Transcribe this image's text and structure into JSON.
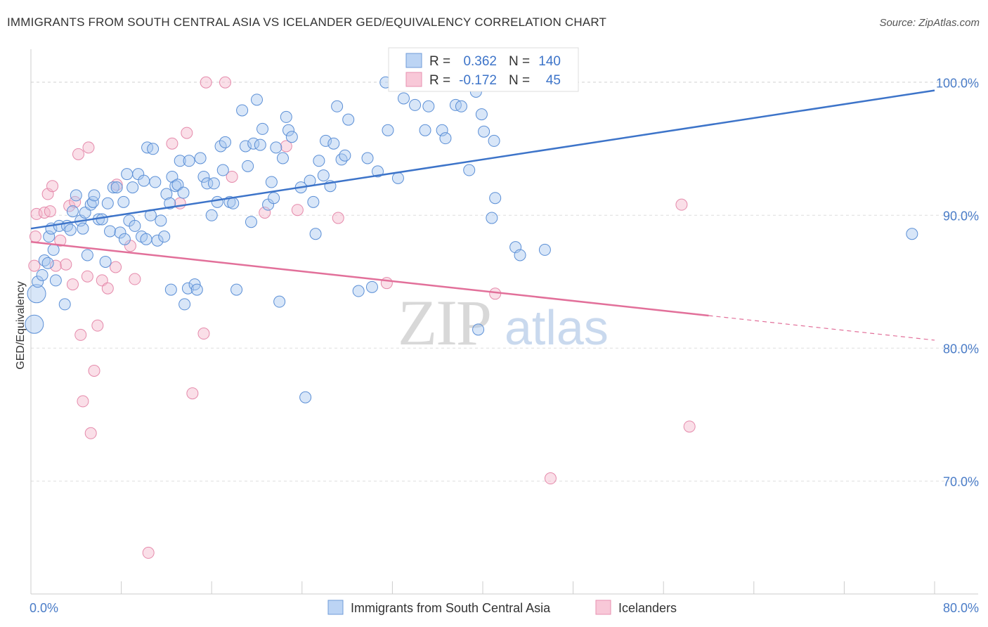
{
  "title": "IMMIGRANTS FROM SOUTH CENTRAL ASIA VS ICELANDER GED/EQUIVALENCY CORRELATION CHART",
  "source": "Source: ZipAtlas.com",
  "watermark": {
    "zip": "ZIP",
    "atlas": "atlas"
  },
  "chart_data": {
    "type": "scatter",
    "xlabel": "",
    "ylabel": "GED/Equivalency",
    "xlim": [
      0,
      80
    ],
    "ylim": [
      61.5,
      102.5
    ],
    "x_tick_labels": [
      "0.0%",
      "80.0%"
    ],
    "y_ticks": [
      70,
      80,
      90,
      100
    ],
    "y_tick_labels": [
      "70.0%",
      "80.0%",
      "90.0%",
      "100.0%"
    ],
    "grid": "horizontal dashed",
    "legend": {
      "placement": "top-center",
      "rows": [
        {
          "r_label": "R =",
          "r_value": "0.362",
          "n_label": "N =",
          "n_value": "140"
        },
        {
          "r_label": "R =",
          "r_value": "-0.172",
          "n_label": "N =",
          "n_value": "45"
        }
      ]
    },
    "colors": {
      "blue": "#3d74c9",
      "blue_fill": "#a9c8f0",
      "pink": "#e2709a",
      "pink_fill": "#f5b8cd",
      "axis_text": "#4a7cc7"
    },
    "series": [
      {
        "name": "Immigrants from South Central Asia",
        "color": "#3d74c9",
        "trend": {
          "x0": 0,
          "y0": 89.0,
          "x1": 80,
          "y1": 99.4
        },
        "points": [
          [
            0.3,
            81.8
          ],
          [
            0.5,
            84.1
          ],
          [
            0.6,
            85.0
          ],
          [
            1.0,
            85.5
          ],
          [
            1.2,
            86.6
          ],
          [
            1.5,
            86.4
          ],
          [
            1.6,
            88.4
          ],
          [
            1.8,
            89.0
          ],
          [
            2.0,
            87.4
          ],
          [
            2.2,
            85.1
          ],
          [
            2.5,
            89.2
          ],
          [
            3.0,
            83.3
          ],
          [
            3.2,
            89.2
          ],
          [
            3.5,
            88.9
          ],
          [
            3.7,
            90.3
          ],
          [
            4.0,
            91.5
          ],
          [
            4.4,
            89.6
          ],
          [
            4.6,
            89.0
          ],
          [
            4.8,
            90.2
          ],
          [
            5.0,
            87.0
          ],
          [
            5.3,
            90.8
          ],
          [
            5.5,
            91.0
          ],
          [
            5.6,
            91.5
          ],
          [
            6.0,
            89.7
          ],
          [
            6.3,
            89.7
          ],
          [
            6.6,
            86.5
          ],
          [
            6.8,
            90.9
          ],
          [
            7.0,
            88.8
          ],
          [
            7.3,
            92.1
          ],
          [
            7.6,
            92.1
          ],
          [
            7.9,
            88.7
          ],
          [
            8.2,
            91.0
          ],
          [
            8.3,
            88.2
          ],
          [
            8.5,
            93.1
          ],
          [
            8.7,
            89.6
          ],
          [
            9.0,
            92.1
          ],
          [
            9.2,
            89.2
          ],
          [
            9.5,
            93.1
          ],
          [
            9.8,
            88.4
          ],
          [
            10.0,
            92.6
          ],
          [
            10.2,
            88.2
          ],
          [
            10.3,
            95.1
          ],
          [
            10.6,
            90.0
          ],
          [
            10.8,
            95.0
          ],
          [
            11.0,
            92.5
          ],
          [
            11.2,
            88.1
          ],
          [
            11.5,
            89.6
          ],
          [
            11.8,
            88.4
          ],
          [
            12.0,
            91.6
          ],
          [
            12.3,
            90.9
          ],
          [
            12.4,
            84.4
          ],
          [
            12.5,
            92.9
          ],
          [
            12.8,
            92.2
          ],
          [
            13.0,
            92.3
          ],
          [
            13.2,
            94.1
          ],
          [
            13.5,
            91.7
          ],
          [
            13.6,
            83.3
          ],
          [
            13.9,
            84.5
          ],
          [
            14.0,
            94.1
          ],
          [
            14.5,
            84.8
          ],
          [
            14.7,
            84.4
          ],
          [
            15.0,
            94.3
          ],
          [
            15.3,
            92.9
          ],
          [
            15.6,
            92.4
          ],
          [
            16.0,
            90.0
          ],
          [
            16.2,
            92.4
          ],
          [
            16.5,
            91.0
          ],
          [
            16.8,
            95.2
          ],
          [
            17.0,
            93.4
          ],
          [
            17.2,
            95.5
          ],
          [
            17.6,
            91.0
          ],
          [
            17.9,
            90.9
          ],
          [
            18.2,
            84.4
          ],
          [
            18.7,
            97.9
          ],
          [
            19.0,
            95.2
          ],
          [
            19.2,
            93.7
          ],
          [
            19.5,
            89.5
          ],
          [
            19.7,
            95.4
          ],
          [
            20.0,
            98.7
          ],
          [
            20.3,
            95.3
          ],
          [
            20.5,
            96.5
          ],
          [
            21.0,
            90.8
          ],
          [
            21.3,
            92.5
          ],
          [
            21.5,
            91.3
          ],
          [
            21.7,
            95.1
          ],
          [
            22.0,
            83.5
          ],
          [
            22.3,
            94.3
          ],
          [
            22.6,
            97.4
          ],
          [
            22.8,
            96.4
          ],
          [
            23.1,
            95.9
          ],
          [
            23.9,
            92.1
          ],
          [
            24.3,
            76.3
          ],
          [
            24.7,
            92.6
          ],
          [
            25.0,
            91.0
          ],
          [
            25.2,
            88.6
          ],
          [
            25.5,
            94.1
          ],
          [
            25.9,
            93.0
          ],
          [
            26.1,
            95.6
          ],
          [
            26.5,
            92.2
          ],
          [
            26.8,
            95.4
          ],
          [
            27.1,
            98.2
          ],
          [
            27.5,
            94.2
          ],
          [
            27.8,
            94.5
          ],
          [
            28.1,
            97.2
          ],
          [
            29.0,
            84.3
          ],
          [
            29.8,
            94.3
          ],
          [
            30.2,
            84.6
          ],
          [
            30.7,
            93.3
          ],
          [
            31.4,
            100.0
          ],
          [
            31.6,
            96.4
          ],
          [
            32.5,
            92.8
          ],
          [
            33.0,
            98.8
          ],
          [
            34.0,
            98.3
          ],
          [
            34.9,
            96.4
          ],
          [
            35.2,
            98.2
          ],
          [
            36.4,
            96.4
          ],
          [
            36.7,
            95.8
          ],
          [
            37.6,
            98.3
          ],
          [
            38.1,
            98.2
          ],
          [
            38.8,
            93.4
          ],
          [
            39.4,
            99.3
          ],
          [
            39.6,
            81.4
          ],
          [
            39.9,
            97.6
          ],
          [
            40.1,
            96.3
          ],
          [
            40.8,
            89.8
          ],
          [
            41.0,
            95.6
          ],
          [
            41.1,
            91.3
          ],
          [
            42.9,
            87.6
          ],
          [
            43.3,
            87.0
          ],
          [
            45.5,
            87.4
          ],
          [
            78.0,
            88.6
          ]
        ]
      },
      {
        "name": "Icelanders",
        "color": "#e2709a",
        "trend": {
          "x0": 0,
          "y0": 88.0,
          "x1": 80,
          "y1": 80.6
        },
        "points": [
          [
            0.3,
            86.2
          ],
          [
            0.5,
            90.1
          ],
          [
            1.2,
            90.2
          ],
          [
            1.5,
            91.6
          ],
          [
            1.7,
            90.3
          ],
          [
            1.9,
            92.2
          ],
          [
            2.2,
            86.2
          ],
          [
            2.6,
            88.1
          ],
          [
            3.1,
            86.3
          ],
          [
            3.4,
            90.7
          ],
          [
            3.7,
            84.8
          ],
          [
            3.9,
            91.0
          ],
          [
            4.2,
            94.6
          ],
          [
            4.4,
            81.0
          ],
          [
            4.6,
            76.0
          ],
          [
            5.0,
            85.4
          ],
          [
            5.1,
            95.1
          ],
          [
            5.3,
            73.6
          ],
          [
            5.6,
            78.3
          ],
          [
            5.9,
            81.7
          ],
          [
            6.3,
            85.1
          ],
          [
            6.8,
            84.5
          ],
          [
            7.5,
            86.1
          ],
          [
            7.6,
            92.3
          ],
          [
            8.8,
            87.7
          ],
          [
            9.2,
            85.2
          ],
          [
            10.4,
            64.6
          ],
          [
            12.5,
            95.4
          ],
          [
            13.2,
            90.9
          ],
          [
            13.8,
            96.2
          ],
          [
            14.3,
            76.6
          ],
          [
            15.3,
            81.1
          ],
          [
            15.5,
            100.0
          ],
          [
            17.2,
            100.0
          ],
          [
            17.8,
            92.9
          ],
          [
            20.7,
            90.2
          ],
          [
            22.6,
            95.2
          ],
          [
            23.6,
            90.4
          ],
          [
            27.2,
            89.8
          ],
          [
            31.5,
            84.9
          ],
          [
            41.1,
            84.1
          ],
          [
            46.0,
            70.2
          ],
          [
            57.6,
            90.8
          ],
          [
            58.3,
            74.1
          ],
          [
            0.4,
            88.4
          ]
        ]
      }
    ]
  }
}
